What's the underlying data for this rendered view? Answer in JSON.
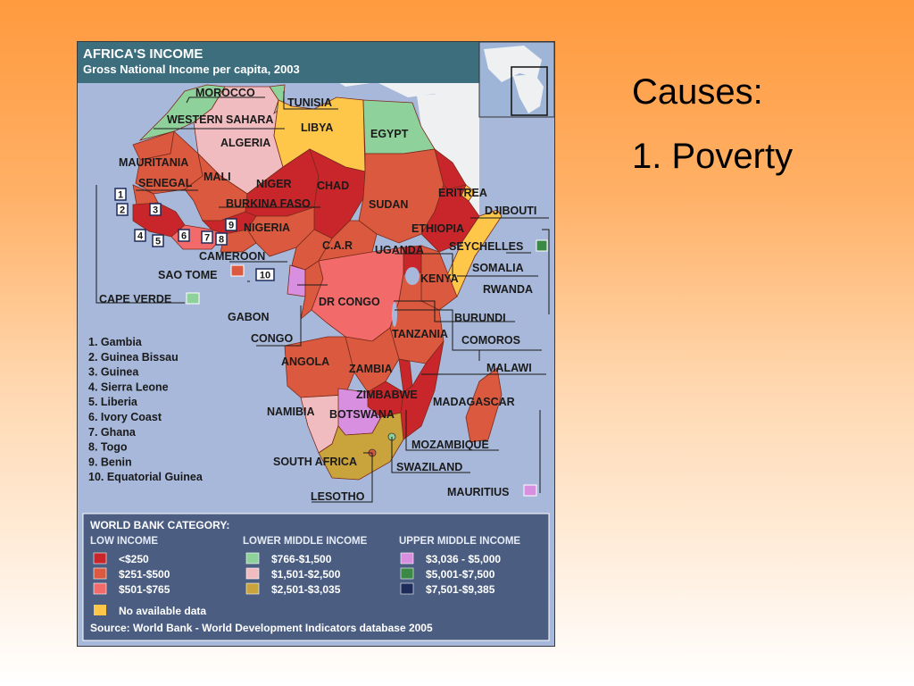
{
  "slide": {
    "heading": "Causes:",
    "point_1": "1. Poverty"
  },
  "map": {
    "title": "AFRICA'S INCOME",
    "subtitle": "Gross National Income per capita, 2003",
    "labels": {
      "morocco": "MOROCCO",
      "tunisia": "TUNISIA",
      "western_sahara": "WESTERN SAHARA",
      "libya": "LIBYA",
      "algeria": "ALGERIA",
      "egypt": "EGYPT",
      "mauritania": "MAURITANIA",
      "mali": "MALI",
      "senegal": "SENEGAL",
      "niger": "NIGER",
      "chad": "CHAD",
      "sudan": "SUDAN",
      "eritrea": "ERITREA",
      "djibouti": "DJIBOUTI",
      "burkina_faso": "BURKINA FASO",
      "nigeria": "NIGERIA",
      "ethiopia": "ETHIOPIA",
      "car": "C.A.R",
      "uganda": "UGANDA",
      "seychelles": "SEYCHELLES",
      "cameroon": "CAMEROON",
      "somalia": "SOMALIA",
      "sao_tome": "SAO TOME",
      "kenya": "KENYA",
      "rwanda": "RWANDA",
      "cape_verde": "CAPE VERDE",
      "dr_congo": "DR CONGO",
      "gabon": "GABON",
      "burundi": "BURUNDI",
      "congo": "CONGO",
      "tanzania": "TANZANIA",
      "comoros": "COMOROS",
      "angola": "ANGOLA",
      "zambia": "ZAMBIA",
      "malawi": "MALAWI",
      "zimbabwe": "ZIMBABWE",
      "madagascar": "MADAGASCAR",
      "namibia": "NAMIBIA",
      "botswana": "BOTSWANA",
      "mozambique": "MOZAMBIQUE",
      "south_africa": "SOUTH AFRICA",
      "swaziland": "SWAZILAND",
      "lesotho": "LESOTHO",
      "mauritius": "MAURITIUS"
    },
    "markers": [
      "1",
      "2",
      "3",
      "4",
      "5",
      "6",
      "7",
      "8",
      "9",
      "10"
    ],
    "key": [
      "1. Gambia",
      "2. Guinea Bissau",
      "3. Guinea",
      "4. Sierra Leone",
      "5. Liberia",
      "6. Ivory Coast",
      "7. Ghana",
      "8. Togo",
      "9. Benin",
      "10. Equatorial Guinea"
    ],
    "legend": {
      "title": "WORLD BANK CATEGORY:",
      "low_header": "LOW INCOME",
      "lower_middle_header": "LOWER MIDDLE INCOME",
      "upper_middle_header": "UPPER MIDDLE INCOME",
      "low": [
        "<$250",
        "$251-$500",
        "$501-$765"
      ],
      "lower_middle": [
        "$766-$1,500",
        "$1,501-$2,500",
        "$2,501-$3,035"
      ],
      "upper_middle": [
        "$3,036 - $5,000",
        "$5,001-$7,500",
        "$7,501-$9,385"
      ],
      "no_data": "No available data",
      "source": "Source: World Bank - World Development Indicators database 2005"
    },
    "colors": {
      "under_250": "#c8262a",
      "r251_500": "#db5a3f",
      "r501_765": "#f26a6a",
      "r766_1500": "#8fd19b",
      "r1501_2500": "#f0bcc0",
      "r2501_3035": "#c9a43c",
      "r3036_5000": "#d98fe0",
      "r5001_7500": "#3a8a45",
      "r7501_9385": "#1e2a5a",
      "no_data": "#ffc74a",
      "sea": "#9fb2d8",
      "panel": "#4b5e82"
    }
  }
}
